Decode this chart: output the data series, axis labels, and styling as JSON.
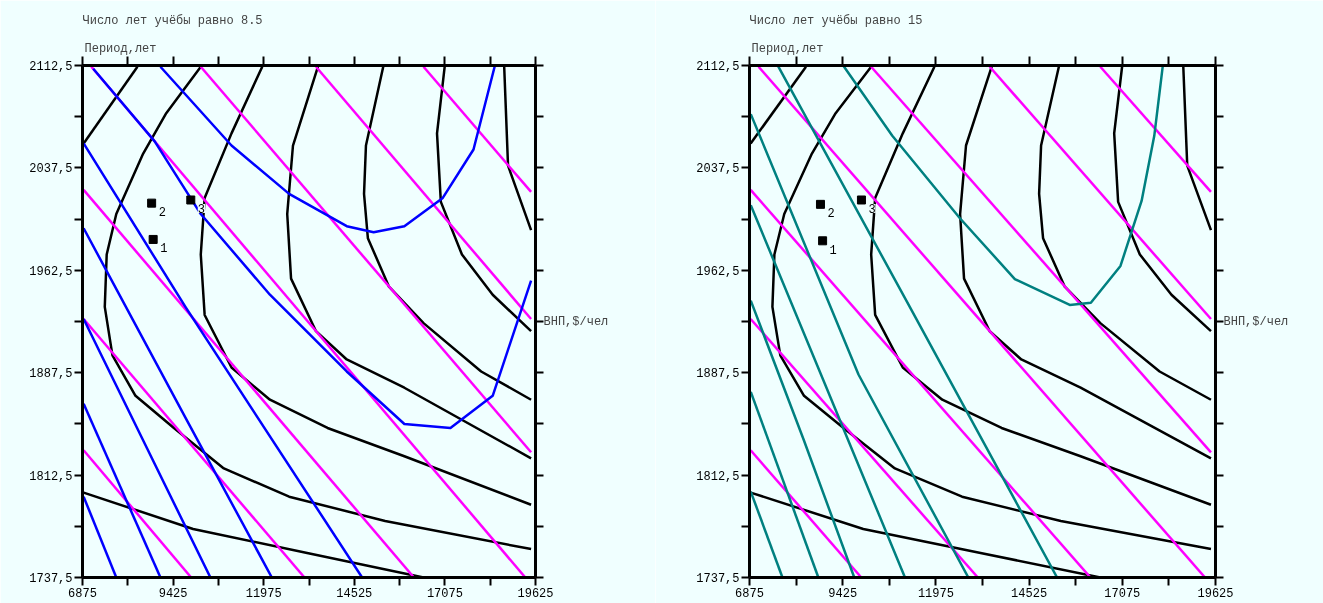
{
  "chart_data": [
    {
      "type": "line",
      "title": "Число лет учёбы равно 8.5",
      "xlabel": "ВНП,$/чел",
      "ylabel": "Период,лет",
      "xlim": [
        6875,
        19625
      ],
      "ylim": [
        1737.5,
        2112.5
      ],
      "xticks": [
        6875,
        {
          "value": 8150,
          "label": null
        },
        9425,
        {
          "value": 10700,
          "label": null
        },
        11975,
        {
          "value": 13250,
          "label": null
        },
        14525,
        {
          "value": 15800,
          "label": null
        },
        17075,
        {
          "value": 18350,
          "label": null
        },
        19625
      ],
      "yticks": [
        {
          "value": 1737.5,
          "label": "1737,5"
        },
        {
          "value": 1775,
          "label": null
        },
        {
          "value": 1812.5,
          "label": "1812,5"
        },
        {
          "value": 1850,
          "label": null
        },
        {
          "value": 1887.5,
          "label": "1887,5"
        },
        {
          "value": 1925,
          "label": null
        },
        {
          "value": 1962.5,
          "label": "1962,5"
        },
        {
          "value": 2000,
          "label": null
        },
        {
          "value": 2037.5,
          "label": "2037,5"
        },
        {
          "value": 2075,
          "label": null
        },
        {
          "value": 2112.5,
          "label": "2112,5"
        }
      ],
      "grid": false,
      "line_style": "solid",
      "marker": "none",
      "series": [
        {
          "color": "#000000",
          "x": [
            6907,
            8421
          ],
          "values": [
            2055.4,
            2111.6
          ]
        },
        {
          "color": "#000000",
          "x": [
            10204,
            9232,
            8583,
            7826,
            7556,
            7502,
            7718,
            8367,
            9448,
            10853,
            12691,
            15393,
            19501
          ],
          "values": [
            2111.6,
            2077.6,
            2048.0,
            2003.7,
            1974.1,
            1935.7,
            1900.2,
            1870.6,
            1847.0,
            1817.4,
            1796.7,
            1778.9,
            1758.3
          ]
        },
        {
          "color": "#000000",
          "x": [
            11934,
            11069,
            10313,
            10204,
            10313,
            11069,
            12150,
            13772,
            15934,
            19501
          ],
          "values": [
            2111.6,
            2062.8,
            2015.5,
            1974.1,
            1929.8,
            1891.3,
            1867.7,
            1847.0,
            1826.3,
            1790.8
          ]
        },
        {
          "color": "#000000",
          "x": [
            13502,
            12799,
            12637,
            12745,
            13447,
            14312,
            15934,
            19501
          ],
          "values": [
            2111.6,
            2053.9,
            2003.7,
            1956.4,
            1917.9,
            1897.2,
            1876.5,
            1824.8
          ]
        },
        {
          "color": "#000000",
          "x": [
            15339,
            14853,
            14799,
            14907,
            15501,
            16474,
            18096,
            19501
          ],
          "values": [
            2111.6,
            2053.9,
            2018.5,
            1986.0,
            1950.5,
            1923.8,
            1888.4,
            1867.7
          ]
        },
        {
          "color": "#000000",
          "x": [
            17069,
            16853,
            16961,
            17555,
            18420,
            19501
          ],
          "values": [
            2111.6,
            2062.8,
            2012.6,
            1974.1,
            1944.6,
            1917.9
          ]
        },
        {
          "color": "#000000",
          "x": [
            18744,
            18852,
            19501
          ],
          "values": [
            2111.6,
            2039.2,
            1991.9
          ]
        },
        {
          "color": "#000000",
          "x": [
            6907,
            9988,
            13231,
            16474
          ],
          "values": [
            1799.7,
            1773.0,
            1755.3,
            1737.5
          ]
        },
        {
          "color": "#ff00ff",
          "x": [
            16474,
            19501
          ],
          "values": [
            2111.6,
            2019.9
          ]
        },
        {
          "color": "#ff00ff",
          "x": [
            13447,
            19501
          ],
          "values": [
            2111.6,
            1926.8
          ]
        },
        {
          "color": "#ff00ff",
          "x": [
            10204,
            19501
          ],
          "values": [
            2111.6,
            1829.2
          ]
        },
        {
          "color": "#ff00ff",
          "x": [
            7124,
            19339
          ],
          "values": [
            2111.6,
            1737.5
          ]
        },
        {
          "color": "#ff00ff",
          "x": [
            6907,
            16204
          ],
          "values": [
            2021.4,
            1737.5
          ]
        },
        {
          "color": "#ff00ff",
          "x": [
            6907,
            13123
          ],
          "values": [
            1926.8,
            1737.5
          ]
        },
        {
          "color": "#ff00ff",
          "x": [
            6907,
            9934
          ],
          "values": [
            1830.7,
            1737.5
          ]
        },
        {
          "color": "#0000ff",
          "x": [
            9069,
            11069,
            12691,
            14312,
            15069,
            15934,
            17015,
            17880,
            18474
          ],
          "values": [
            2111.6,
            2053.9,
            2018.5,
            1994.8,
            1990.4,
            1994.8,
            2015.5,
            2051.0,
            2111.6
          ]
        },
        {
          "color": "#0000ff",
          "x": [
            7178,
            8907,
            10204,
            12150,
            14312,
            15934,
            17231,
            18420,
            19501
          ],
          "values": [
            2110.1,
            2056.9,
            2003.7,
            1944.6,
            1888.4,
            1849.9,
            1847.0,
            1870.6,
            1954.9
          ]
        },
        {
          "color": "#0000ff",
          "x": [
            6907,
            9772,
            14745
          ],
          "values": [
            2055.4,
            1935.7,
            1737.5
          ]
        },
        {
          "color": "#0000ff",
          "x": [
            6907,
            9772,
            12204
          ],
          "values": [
            1993.3,
            1854.6,
            1737.5
          ]
        },
        {
          "color": "#0000ff",
          "x": [
            6907,
            8691,
            10475
          ],
          "values": [
            1926.8,
            1832.2,
            1737.5
          ]
        },
        {
          "color": "#0000ff",
          "x": [
            6907,
            9069
          ],
          "values": [
            1864.7,
            1737.5
          ]
        },
        {
          "color": "#0000ff",
          "x": [
            6907,
            7826
          ],
          "values": [
            1796.7,
            1737.5
          ]
        },
        {
          "type": "scatter",
          "marker": "square",
          "color": "#000000",
          "x": [
            8864,
            8821,
            9923
          ],
          "values": [
            1985.1,
            2011.7,
            2014.0
          ]
        }
      ],
      "annotations": [
        {
          "text": "1",
          "x": 8864,
          "y": 1985.1
        },
        {
          "text": "2",
          "x": 8821,
          "y": 2011.7
        },
        {
          "text": "3",
          "x": 9923,
          "y": 2014.0
        }
      ]
    },
    {
      "type": "line",
      "title": "Число лет учёбы равно 15",
      "xlabel": "ВНП,$/чел",
      "ylabel": "Период,лет",
      "xlim": [
        6875,
        19625
      ],
      "ylim": [
        1737.5,
        2112.5
      ],
      "xticks": [
        6875,
        {
          "value": 8150,
          "label": null
        },
        9425,
        {
          "value": 10700,
          "label": null
        },
        11975,
        {
          "value": 13250,
          "label": null
        },
        14525,
        {
          "value": 15800,
          "label": null
        },
        17075,
        {
          "value": 18350,
          "label": null
        },
        19625
      ],
      "yticks": [
        {
          "value": 1737.5,
          "label": "1737,5"
        },
        {
          "value": 1775,
          "label": null
        },
        {
          "value": 1812.5,
          "label": "1812,5"
        },
        {
          "value": 1850,
          "label": null
        },
        {
          "value": 1887.5,
          "label": "1887,5"
        },
        {
          "value": 1925,
          "label": null
        },
        {
          "value": 1962.5,
          "label": "1962,5"
        },
        {
          "value": 2000,
          "label": null
        },
        {
          "value": 2037.5,
          "label": "2037,5"
        },
        {
          "value": 2075,
          "label": null
        },
        {
          "value": 2112.5,
          "label": "2112,5"
        }
      ],
      "grid": false,
      "line_style": "solid",
      "marker": "none",
      "series": [
        {
          "color": "#000000",
          "x": [
            6907,
            8421
          ],
          "values": [
            2055.4,
            2111.6
          ]
        },
        {
          "color": "#000000",
          "x": [
            10204,
            9232,
            8583,
            7826,
            7556,
            7502,
            7718,
            8367,
            9448,
            10853,
            12691,
            15393,
            19501
          ],
          "values": [
            2111.6,
            2077.6,
            2048.0,
            2003.7,
            1974.1,
            1935.7,
            1900.2,
            1870.6,
            1847.0,
            1817.4,
            1796.7,
            1778.9,
            1758.3
          ]
        },
        {
          "color": "#000000",
          "x": [
            11934,
            11069,
            10313,
            10204,
            10313,
            11069,
            12150,
            13772,
            15934,
            19501
          ],
          "values": [
            2111.6,
            2062.8,
            2015.5,
            1974.1,
            1929.8,
            1891.3,
            1867.7,
            1847.0,
            1826.3,
            1790.8
          ]
        },
        {
          "color": "#000000",
          "x": [
            13502,
            12799,
            12637,
            12745,
            13447,
            14312,
            15934,
            19501
          ],
          "values": [
            2111.6,
            2053.9,
            2003.7,
            1956.4,
            1917.9,
            1897.2,
            1876.5,
            1824.8
          ]
        },
        {
          "color": "#000000",
          "x": [
            15339,
            14853,
            14799,
            14907,
            15501,
            16474,
            18096,
            19501
          ],
          "values": [
            2111.6,
            2053.9,
            2018.5,
            1986.0,
            1950.5,
            1923.8,
            1888.4,
            1867.7
          ]
        },
        {
          "color": "#000000",
          "x": [
            17069,
            16853,
            16961,
            17555,
            18420,
            19501
          ],
          "values": [
            2111.6,
            2062.8,
            2012.6,
            1974.1,
            1944.6,
            1917.9
          ]
        },
        {
          "color": "#000000",
          "x": [
            18744,
            18852,
            19501
          ],
          "values": [
            2111.6,
            2039.2,
            1991.9
          ]
        },
        {
          "color": "#000000",
          "x": [
            6907,
            9988,
            13231,
            16474
          ],
          "values": [
            1799.7,
            1773.0,
            1755.3,
            1737.5
          ]
        },
        {
          "color": "#ff00ff",
          "x": [
            16474,
            19501
          ],
          "values": [
            2111.6,
            2019.9
          ]
        },
        {
          "color": "#ff00ff",
          "x": [
            13447,
            19501
          ],
          "values": [
            2111.6,
            1926.8
          ]
        },
        {
          "color": "#ff00ff",
          "x": [
            10204,
            19501
          ],
          "values": [
            2111.6,
            1829.2
          ]
        },
        {
          "color": "#ff00ff",
          "x": [
            7124,
            19339
          ],
          "values": [
            2111.6,
            1737.5
          ]
        },
        {
          "color": "#ff00ff",
          "x": [
            6907,
            16204
          ],
          "values": [
            2021.4,
            1737.5
          ]
        },
        {
          "color": "#ff00ff",
          "x": [
            6907,
            13123
          ],
          "values": [
            1926.8,
            1737.5
          ]
        },
        {
          "color": "#ff00ff",
          "x": [
            6907,
            9934
          ],
          "values": [
            1830.7,
            1737.5
          ]
        },
        {
          "color": "#008080",
          "x": [
            9453,
            10782,
            12632,
            14135,
            15637,
            16215,
            17025,
            17603,
            17950,
            18181
          ],
          "values": [
            2111.9,
            2061.0,
            2000.6,
            1956.1,
            1937.1,
            1938.7,
            1965.7,
            2013.3,
            2061.0,
            2111.9
          ]
        },
        {
          "color": "#008080",
          "x": [
            7661,
            11245,
            15291
          ],
          "values": [
            2111.9,
            1936.4,
            1737.5
          ]
        },
        {
          "color": "#008080",
          "x": [
            6910,
            9857,
            12863
          ],
          "values": [
            2076.9,
            1886.2,
            1737.5
          ]
        },
        {
          "color": "#008080",
          "x": [
            6910,
            8933,
            11129
          ],
          "values": [
            2010.2,
            1879.6,
            1737.5
          ]
        },
        {
          "color": "#008080",
          "x": [
            6910,
            8355,
            9742
          ],
          "values": [
            1940.3,
            1838.6,
            1737.5
          ]
        },
        {
          "color": "#008080",
          "x": [
            6910,
            8759
          ],
          "values": [
            1873.5,
            1737.5
          ]
        },
        {
          "color": "#008080",
          "x": [
            6910,
            7777
          ],
          "values": [
            1800.4,
            1737.5
          ]
        },
        {
          "type": "scatter",
          "marker": "square",
          "color": "#000000",
          "x": [
            8875,
            8817,
            9938
          ],
          "values": [
            1984.1,
            2010.8,
            2014.0
          ]
        }
      ],
      "annotations": [
        {
          "text": "1",
          "x": 8875,
          "y": 1984.1
        },
        {
          "text": "2",
          "x": 8817,
          "y": 2010.8
        },
        {
          "text": "3",
          "x": 9938,
          "y": 2014.0
        }
      ]
    }
  ]
}
